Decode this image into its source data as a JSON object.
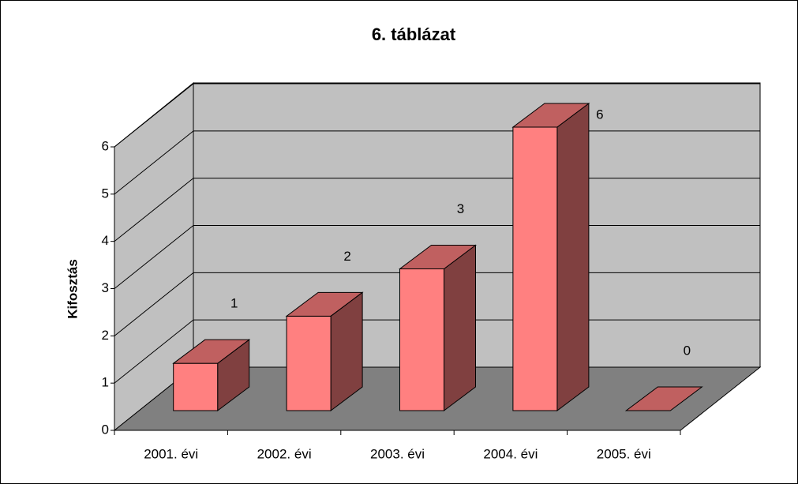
{
  "chart_data": {
    "type": "bar3d",
    "title": "6. táblázat",
    "y_label": "Kifosztás",
    "categories": [
      "2001. évi",
      "2002. évi",
      "2003. évi",
      "2004. évi",
      "2005. évi"
    ],
    "values": [
      1,
      2,
      3,
      6,
      0
    ],
    "color": "#ff8080",
    "ylim": [
      0,
      6
    ],
    "yticks": [
      0,
      1,
      2,
      3,
      4,
      5,
      6
    ],
    "grid": true
  }
}
